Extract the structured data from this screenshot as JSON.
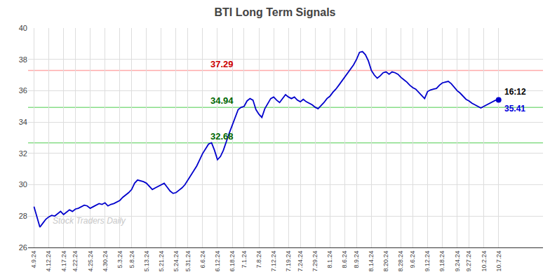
{
  "chart_data": {
    "type": "line",
    "title": "BTI Long Term Signals",
    "background_color": "#ffffff",
    "color": "#0000cc",
    "marker": "last",
    "grid": true,
    "grid_color": "#dddddd",
    "ylim": [
      26,
      40
    ],
    "yticks": [
      26,
      28,
      30,
      32,
      34,
      36,
      38,
      40
    ],
    "categories": [
      "4.9.24",
      null,
      null,
      null,
      null,
      "4.12.24",
      null,
      null,
      null,
      null,
      "4.17.24",
      null,
      null,
      null,
      "4.22.24",
      null,
      null,
      null,
      null,
      "4.25.24",
      null,
      null,
      null,
      null,
      "4.30.24",
      null,
      null,
      null,
      null,
      "5.3.24",
      null,
      null,
      null,
      "5.8.24",
      null,
      null,
      null,
      null,
      "5.13.24",
      null,
      null,
      null,
      null,
      "5.21.24",
      null,
      null,
      null,
      null,
      "5.24.24",
      null,
      null,
      null,
      "5.31.24",
      null,
      null,
      null,
      null,
      "6.6.24",
      null,
      null,
      null,
      null,
      "6.12.24",
      null,
      null,
      null,
      null,
      "6.18.24",
      null,
      null,
      null,
      "7.1.24",
      null,
      null,
      null,
      null,
      "7.8.24",
      null,
      null,
      null,
      null,
      "7.12.24",
      null,
      null,
      null,
      null,
      "7.19.24",
      null,
      null,
      null,
      "7.24.24",
      null,
      null,
      null,
      null,
      "7.29.24",
      null,
      null,
      null,
      null,
      "8.1.24",
      null,
      null,
      null,
      null,
      "8.6.24",
      null,
      null,
      null,
      "8.9.24",
      null,
      null,
      null,
      null,
      "8.14.24",
      null,
      null,
      null,
      null,
      "8.20.24",
      null,
      null,
      null,
      null,
      "8.28.24",
      null,
      null,
      null,
      "9.6.24",
      null,
      null,
      null,
      null,
      "9.12.24",
      null,
      null,
      null,
      null,
      "9.18.24",
      null,
      null,
      null,
      null,
      "9.24.24",
      null,
      null,
      null,
      "9.27.24",
      null,
      null,
      null,
      null,
      "10.2.24",
      null,
      null,
      null,
      null,
      "10.7.24"
    ],
    "values": [
      28.6,
      27.9,
      27.3,
      27.55,
      27.8,
      27.95,
      28.05,
      28.0,
      28.15,
      28.3,
      28.1,
      28.25,
      28.4,
      28.3,
      28.45,
      28.5,
      28.6,
      28.7,
      28.65,
      28.5,
      28.6,
      28.7,
      28.8,
      28.75,
      28.85,
      28.65,
      28.75,
      28.8,
      28.9,
      29.0,
      29.2,
      29.35,
      29.5,
      29.7,
      30.1,
      30.3,
      30.25,
      30.2,
      30.1,
      29.9,
      29.7,
      29.8,
      29.9,
      30.0,
      30.1,
      29.85,
      29.6,
      29.45,
      29.5,
      29.65,
      29.8,
      30.0,
      30.3,
      30.6,
      30.9,
      31.2,
      31.6,
      32.0,
      32.3,
      32.6,
      32.68,
      32.2,
      31.6,
      31.8,
      32.2,
      32.8,
      33.3,
      33.8,
      34.3,
      34.8,
      34.94,
      35.0,
      35.35,
      35.5,
      35.4,
      34.8,
      34.5,
      34.3,
      34.85,
      35.2,
      35.5,
      35.6,
      35.4,
      35.25,
      35.5,
      35.75,
      35.6,
      35.5,
      35.6,
      35.4,
      35.3,
      35.45,
      35.3,
      35.2,
      35.1,
      34.95,
      34.85,
      35.05,
      35.25,
      35.5,
      35.65,
      35.9,
      36.1,
      36.35,
      36.6,
      36.9,
      37.15,
      37.4,
      37.65,
      38.0,
      38.45,
      38.5,
      38.3,
      37.9,
      37.3,
      37.0,
      36.8,
      36.95,
      37.15,
      37.2,
      37.05,
      37.2,
      37.15,
      37.05,
      36.85,
      36.7,
      36.55,
      36.35,
      36.2,
      36.1,
      35.9,
      35.7,
      35.5,
      35.95,
      36.05,
      36.1,
      36.15,
      36.35,
      36.5,
      36.55,
      36.6,
      36.45,
      36.2,
      36.0,
      35.85,
      35.65,
      35.45,
      35.35,
      35.2,
      35.1,
      35.0,
      34.9,
      35.0,
      35.1,
      35.2,
      35.3,
      35.4,
      35.41
    ],
    "hlines": [
      {
        "value": 37.29,
        "color": "#ffaaaa",
        "label": "37.29",
        "label_color": "#cc0000"
      },
      {
        "value": 34.94,
        "color": "#88dd88",
        "label": "34.94",
        "label_color": "#006600"
      },
      {
        "value": 32.68,
        "color": "#88dd88",
        "label": "32.68",
        "label_color": "#006600"
      }
    ],
    "annotations": [
      {
        "text": "16:12",
        "color": "#000000"
      },
      {
        "text": "35.41",
        "color": "#0000dd"
      }
    ],
    "watermark": {
      "text": "Stock Traders Daily",
      "color": "#c8c8c8"
    }
  }
}
